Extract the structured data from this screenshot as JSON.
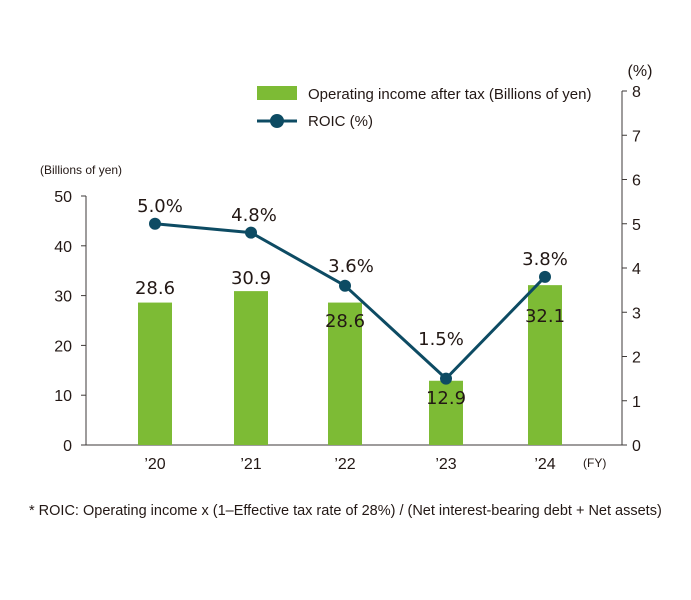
{
  "chart_data": {
    "type": "bar+line",
    "categories": [
      "’20",
      "’21",
      "’22",
      "’23",
      "’24"
    ],
    "x_unit": "(FY)",
    "series": [
      {
        "name": "Operating income after tax (Billions of yen)",
        "type": "bar",
        "axis": "left",
        "values": [
          28.6,
          30.9,
          28.6,
          12.9,
          32.1
        ],
        "labels": [
          "28.6",
          "30.9",
          "28.6",
          "12.9",
          "32.1"
        ],
        "color": "#7dbb35"
      },
      {
        "name": "ROIC (%)",
        "type": "line",
        "axis": "right",
        "values": [
          5.0,
          4.8,
          3.6,
          1.5,
          3.8
        ],
        "labels": [
          "5.0%",
          "4.8%",
          "3.6%",
          "1.5%",
          "3.8%"
        ],
        "color": "#0d4b63"
      }
    ],
    "left_axis": {
      "unit": "(Billions of yen)",
      "ylim": [
        0,
        50
      ],
      "ticks": [
        "0",
        "10",
        "20",
        "30",
        "40",
        "50"
      ]
    },
    "right_axis": {
      "unit": "(%)",
      "ylim": [
        0,
        8
      ],
      "ticks": [
        "0",
        "1",
        "2",
        "3",
        "4",
        "5",
        "6",
        "7",
        "8"
      ]
    },
    "legend_position": "top-right"
  },
  "footnote": "* ROIC: Operating income x  (1–Effective tax rate of 28%) / (Net interest-bearing debt + Net assets)"
}
